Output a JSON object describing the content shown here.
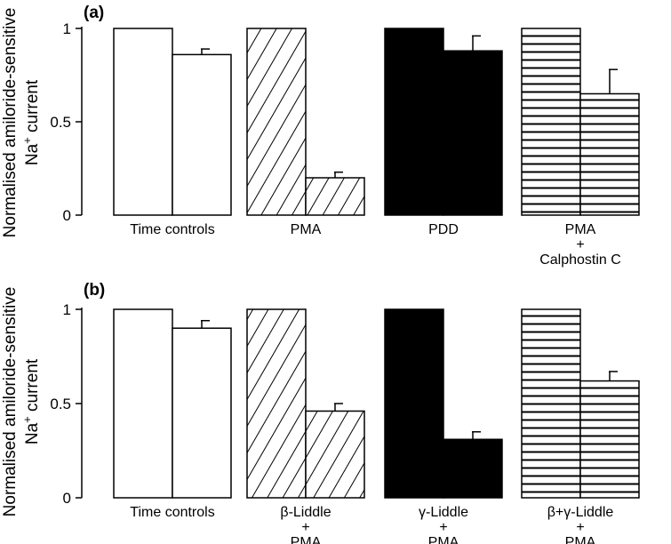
{
  "y_axis_label": {
    "line1": "Normalised amiloride-sensitive",
    "line2_prefix": "Na",
    "line2_sup": "+",
    "line2_suffix": " current"
  },
  "chart_data": [
    {
      "type": "bar",
      "panel_label": "(a)",
      "ylim": [
        0,
        1
      ],
      "yticks": [
        {
          "value": 0,
          "label": "0"
        },
        {
          "value": 0.5,
          "label": "0.5"
        },
        {
          "value": 1,
          "label": "1"
        }
      ],
      "grid": false,
      "groups": [
        {
          "label_lines": [
            "Time controls"
          ],
          "pattern": "white",
          "values": [
            1.0,
            0.86
          ],
          "errors": [
            0,
            0.03
          ]
        },
        {
          "label_lines": [
            "PMA"
          ],
          "pattern": "diagonal",
          "values": [
            1.0,
            0.2
          ],
          "errors": [
            0,
            0.03
          ]
        },
        {
          "label_lines": [
            "PDD"
          ],
          "pattern": "black",
          "values": [
            1.0,
            0.88
          ],
          "errors": [
            0,
            0.08
          ]
        },
        {
          "label_lines": [
            "PMA",
            "+",
            "Calphostin C"
          ],
          "pattern": "horizontal",
          "values": [
            1.0,
            0.65
          ],
          "errors": [
            0,
            0.13
          ]
        }
      ]
    },
    {
      "type": "bar",
      "panel_label": "(b)",
      "ylim": [
        0,
        1
      ],
      "yticks": [
        {
          "value": 0,
          "label": "0"
        },
        {
          "value": 0.5,
          "label": "0.5"
        },
        {
          "value": 1,
          "label": "1"
        }
      ],
      "grid": false,
      "groups": [
        {
          "label_lines": [
            "Time controls"
          ],
          "pattern": "white",
          "values": [
            1.0,
            0.9
          ],
          "errors": [
            0,
            0.04
          ]
        },
        {
          "label_lines": [
            "β-Liddle",
            "+",
            "PMA"
          ],
          "pattern": "diagonal",
          "values": [
            1.0,
            0.46
          ],
          "errors": [
            0,
            0.04
          ]
        },
        {
          "label_lines": [
            "γ-Liddle",
            "+",
            "PMA"
          ],
          "pattern": "black",
          "values": [
            1.0,
            0.31
          ],
          "errors": [
            0,
            0.04
          ]
        },
        {
          "label_lines": [
            "β+γ-Liddle",
            "+",
            "PMA"
          ],
          "pattern": "horizontal",
          "values": [
            1.0,
            0.62
          ],
          "errors": [
            0,
            0.05
          ]
        }
      ]
    }
  ]
}
